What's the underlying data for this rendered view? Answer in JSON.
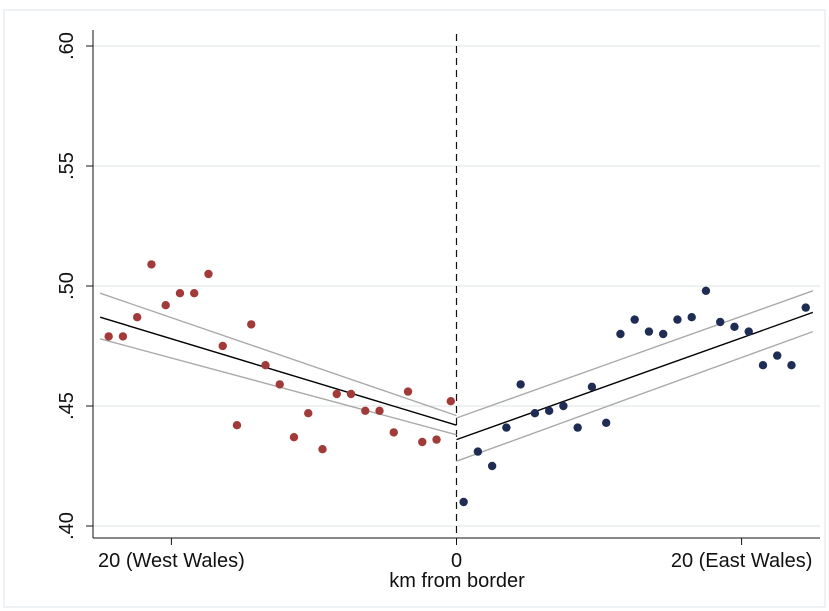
{
  "chart_data": {
    "type": "scatter",
    "title": "",
    "xlabel": "km from border",
    "ylabel": "",
    "xlim": [
      -25.5,
      25.5
    ],
    "ylim": [
      0.395,
      0.605
    ],
    "grid": "horizontal",
    "legend": "none",
    "cutoff": 0,
    "x_ticks": [
      {
        "value": -20,
        "label": "20 (West Wales)"
      },
      {
        "value": 0,
        "label": "0"
      },
      {
        "value": 20,
        "label": "20 (East Wales)"
      }
    ],
    "y_ticks": [
      {
        "value": 0.4,
        "label": ".40"
      },
      {
        "value": 0.45,
        "label": ".45"
      },
      {
        "value": 0.5,
        "label": ".50"
      },
      {
        "value": 0.55,
        "label": ".55"
      },
      {
        "value": 0.6,
        "label": ".60"
      }
    ],
    "series": [
      {
        "color": "#a23a3a",
        "points": [
          [
            -24.4,
            0.479
          ],
          [
            -23.4,
            0.479
          ],
          [
            -22.4,
            0.487
          ],
          [
            -21.4,
            0.509
          ],
          [
            -20.4,
            0.492
          ],
          [
            -19.4,
            0.497
          ],
          [
            -18.4,
            0.497
          ],
          [
            -17.4,
            0.505
          ],
          [
            -16.4,
            0.475
          ],
          [
            -15.4,
            0.442
          ],
          [
            -14.4,
            0.484
          ],
          [
            -13.4,
            0.467
          ],
          [
            -12.4,
            0.459
          ],
          [
            -11.4,
            0.437
          ],
          [
            -10.4,
            0.447
          ],
          [
            -9.4,
            0.432
          ],
          [
            -8.4,
            0.455
          ],
          [
            -7.4,
            0.455
          ],
          [
            -6.4,
            0.448
          ],
          [
            -5.4,
            0.448
          ],
          [
            -4.4,
            0.439
          ],
          [
            -3.4,
            0.456
          ],
          [
            -2.4,
            0.435
          ],
          [
            -1.4,
            0.436
          ],
          [
            -0.4,
            0.452
          ]
        ]
      },
      {
        "color": "#1f2d55",
        "points": [
          [
            0.5,
            0.41
          ],
          [
            1.5,
            0.431
          ],
          [
            2.5,
            0.425
          ],
          [
            3.5,
            0.441
          ],
          [
            4.5,
            0.459
          ],
          [
            5.5,
            0.447
          ],
          [
            6.5,
            0.448
          ],
          [
            7.5,
            0.45
          ],
          [
            8.5,
            0.441
          ],
          [
            9.5,
            0.458
          ],
          [
            10.5,
            0.443
          ],
          [
            11.5,
            0.48
          ],
          [
            12.5,
            0.486
          ],
          [
            13.5,
            0.481
          ],
          [
            14.5,
            0.48
          ],
          [
            15.5,
            0.486
          ],
          [
            16.5,
            0.487
          ],
          [
            17.5,
            0.498
          ],
          [
            18.5,
            0.485
          ],
          [
            19.5,
            0.483
          ],
          [
            20.5,
            0.481
          ],
          [
            21.5,
            0.467
          ],
          [
            22.5,
            0.471
          ],
          [
            23.5,
            0.467
          ],
          [
            24.5,
            0.491
          ]
        ]
      }
    ],
    "fit_lines": [
      {
        "color": "#000000",
        "x": [
          -25,
          0
        ],
        "y": [
          0.487,
          0.442
        ]
      },
      {
        "color": "#aaaaaa",
        "x": [
          -25,
          0
        ],
        "y": [
          0.497,
          0.446
        ]
      },
      {
        "color": "#aaaaaa",
        "x": [
          -25,
          0
        ],
        "y": [
          0.478,
          0.438
        ]
      },
      {
        "color": "#000000",
        "x": [
          0,
          25
        ],
        "y": [
          0.436,
          0.489
        ]
      },
      {
        "color": "#aaaaaa",
        "x": [
          0,
          25
        ],
        "y": [
          0.445,
          0.498
        ]
      },
      {
        "color": "#aaaaaa",
        "x": [
          0,
          25
        ],
        "y": [
          0.427,
          0.481
        ]
      }
    ]
  }
}
